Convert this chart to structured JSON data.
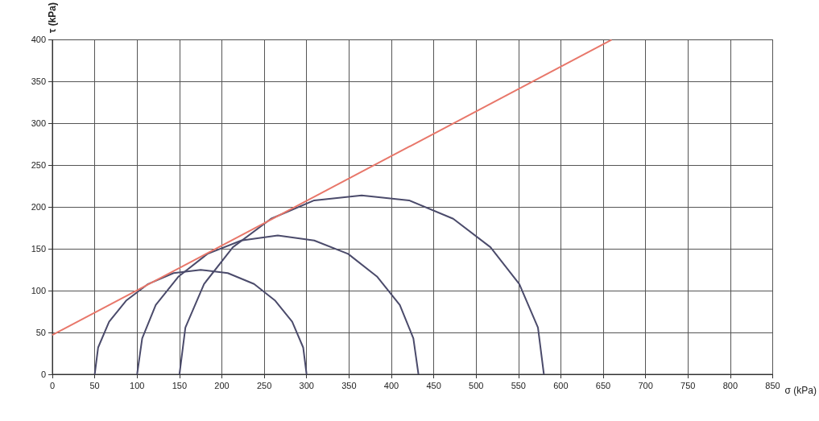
{
  "chart_data": {
    "type": "line",
    "xlabel": "σ (kPa)",
    "ylabel": "τ (kPa)",
    "xlim": [
      0,
      850
    ],
    "xticks": [
      0,
      50,
      100,
      150,
      200,
      250,
      300,
      350,
      400,
      450,
      500,
      550,
      600,
      650,
      700,
      750,
      800,
      850
    ],
    "ylim": [
      0,
      400
    ],
    "yticks": [
      0,
      50,
      100,
      150,
      200,
      250,
      300,
      350,
      400
    ],
    "grid": true,
    "marker": "none",
    "series": [
      {
        "color": "#4b4b6b",
        "x": [
          300,
          296,
          283,
          263,
          238,
          207,
          175,
          143,
          113,
          87,
          67,
          54,
          50
        ],
        "values": [
          0,
          32,
          63,
          88,
          108,
          121,
          125,
          121,
          108,
          88,
          63,
          32,
          0
        ]
      },
      {
        "color": "#4b4b6b",
        "x": [
          432,
          426,
          410,
          383,
          349,
          309,
          266,
          223,
          183,
          149,
          122,
          106,
          100
        ],
        "values": [
          0,
          43,
          83,
          117,
          144,
          160,
          166,
          160,
          144,
          117,
          83,
          43,
          0
        ]
      },
      {
        "color": "#4b4b6b",
        "x": [
          580,
          573,
          551,
          517,
          473,
          421,
          365,
          309,
          258,
          213,
          179,
          157,
          150
        ],
        "values": [
          0,
          56,
          108,
          152,
          186,
          208,
          214,
          208,
          186,
          152,
          108,
          56,
          0
        ]
      },
      {
        "color": "#e8776a",
        "x": [
          0,
          660
        ],
        "values": [
          47,
          400
        ]
      }
    ]
  }
}
